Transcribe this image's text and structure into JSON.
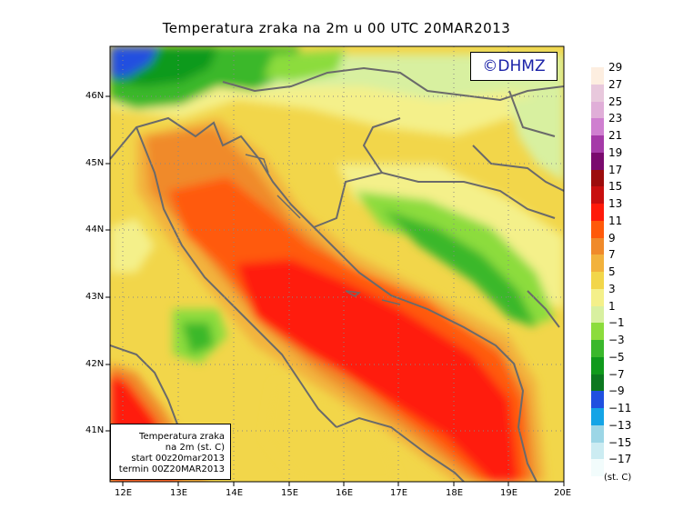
{
  "title": "Temperatura zraka na 2m u 00 UTC 20MAR2013",
  "logo": "©DHMZ",
  "info_box": {
    "line1": "Temperatura zraka",
    "line2": "na 2m (st. C)",
    "line3": "start 00z20mar2013",
    "line4": "termin 00Z20MAR2013"
  },
  "legend": {
    "unit": "(st. C)",
    "labels": [
      "29",
      "27",
      "25",
      "23",
      "21",
      "19",
      "17",
      "15",
      "13",
      "11",
      "9",
      "7",
      "5",
      "3",
      "1",
      "−1",
      "−3",
      "−5",
      "−7",
      "−9",
      "−11",
      "−13",
      "−15",
      "−17"
    ],
    "colors": [
      "#fdeee0",
      "#e8c8dc",
      "#e0aed8",
      "#cf7fd0",
      "#a53aa8",
      "#7a0a6e",
      "#9c0c0c",
      "#c80f0f",
      "#ff1a0a",
      "#ff5a0a",
      "#f08a2a",
      "#f2b23c",
      "#f2d64a",
      "#f4f08a",
      "#d8f0a0",
      "#8cdc3c",
      "#3ab82c",
      "#109a1c",
      "#0c7820",
      "#2050e0",
      "#14a4e6",
      "#9cd6e6",
      "#ccecf2",
      "#f2fcfc"
    ]
  },
  "axes": {
    "x_ticks": [
      "12E",
      "13E",
      "14E",
      "15E",
      "16E",
      "17E",
      "18E",
      "19E",
      "20E"
    ],
    "y_ticks": [
      "46N",
      "45N",
      "44N",
      "43N",
      "42N",
      "41N"
    ]
  }
}
